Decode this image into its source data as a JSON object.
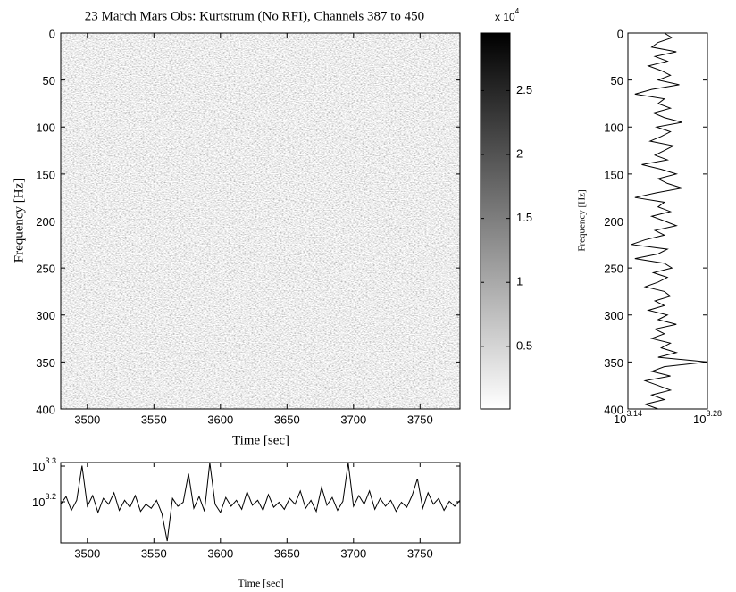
{
  "chart_data": [
    {
      "type": "heatmap",
      "title": "23 March Mars Obs: Kurtstrum (No RFI), Channels 387 to 450",
      "xlabel": "Time [sec]",
      "ylabel": "Frequency [Hz]",
      "xlim": [
        3480,
        3780
      ],
      "xticks": [
        3500,
        3550,
        3600,
        3650,
        3700,
        3750
      ],
      "ylim": [
        0,
        400
      ],
      "y_reversed": true,
      "yticks": [
        0,
        50,
        100,
        150,
        200,
        250,
        300,
        350,
        400
      ],
      "colormap": "gray",
      "colorbar": {
        "clim": [
          0.01,
          2.95
        ],
        "ticks": [
          0.5,
          1,
          1.5,
          2,
          2.5
        ],
        "multiplier": "x 10^4"
      }
    },
    {
      "type": "profile",
      "ylabel": "Frequency [Hz]",
      "xscale": "log",
      "color": "#000000",
      "xlim": [
        1380.38,
        1905.46
      ],
      "xticks": [
        {
          "value": 1380.38,
          "label": "10^3.14"
        },
        {
          "value": 1905.46,
          "label": "10^3.28"
        }
      ],
      "ylim": [
        0,
        400
      ],
      "y_reversed": true,
      "yticks": [
        0,
        50,
        100,
        150,
        200,
        250,
        300,
        350,
        400
      ],
      "y": [
        0,
        5,
        10,
        15,
        20,
        25,
        30,
        35,
        40,
        45,
        50,
        55,
        60,
        65,
        70,
        75,
        80,
        85,
        90,
        95,
        100,
        105,
        110,
        115,
        120,
        125,
        130,
        135,
        140,
        145,
        150,
        155,
        160,
        165,
        170,
        175,
        180,
        185,
        190,
        195,
        200,
        205,
        210,
        215,
        220,
        225,
        230,
        235,
        240,
        245,
        250,
        255,
        260,
        265,
        270,
        275,
        280,
        285,
        290,
        295,
        300,
        305,
        310,
        315,
        320,
        325,
        330,
        335,
        340,
        345,
        350,
        355,
        360,
        365,
        370,
        375,
        380,
        385,
        390,
        395,
        400
      ],
      "values": [
        1600,
        1650,
        1560,
        1520,
        1680,
        1540,
        1620,
        1500,
        1580,
        1640,
        1560,
        1700,
        1520,
        1420,
        1600,
        1560,
        1640,
        1530,
        1600,
        1720,
        1550,
        1640,
        1580,
        1510,
        1660,
        1600,
        1540,
        1620,
        1460,
        1580,
        1680,
        1560,
        1620,
        1720,
        1550,
        1420,
        1600,
        1560,
        1640,
        1520,
        1600,
        1680,
        1540,
        1600,
        1480,
        1400,
        1620,
        1560,
        1420,
        1600,
        1650,
        1530,
        1620,
        1560,
        1480,
        1600,
        1640,
        1540,
        1600,
        1500,
        1620,
        1560,
        1680,
        1540,
        1600,
        1520,
        1640,
        1580,
        1680,
        1560,
        1905,
        1600,
        1520,
        1640,
        1480,
        1560,
        1640,
        1520,
        1600,
        1480,
        1560
      ]
    },
    {
      "type": "line",
      "xlabel": "Time [sec]",
      "yscale": "log",
      "color": "#000000",
      "xlim": [
        3480,
        3780
      ],
      "xticks": [
        3500,
        3550,
        3600,
        3650,
        3700,
        3750
      ],
      "ylim": [
        1216,
        2042
      ],
      "yticks": [
        {
          "value": 1584.89,
          "label": "10^3.2"
        },
        {
          "value": 1995.26,
          "label": "10^3.3"
        }
      ],
      "x": [
        3480,
        3484,
        3488,
        3492,
        3496,
        3500,
        3504,
        3508,
        3512,
        3516,
        3520,
        3524,
        3528,
        3532,
        3536,
        3540,
        3544,
        3548,
        3552,
        3556,
        3560,
        3564,
        3568,
        3572,
        3576,
        3580,
        3584,
        3588,
        3592,
        3596,
        3600,
        3604,
        3608,
        3612,
        3616,
        3620,
        3624,
        3628,
        3632,
        3636,
        3640,
        3644,
        3648,
        3652,
        3656,
        3660,
        3664,
        3668,
        3672,
        3676,
        3680,
        3684,
        3688,
        3692,
        3696,
        3700,
        3704,
        3708,
        3712,
        3716,
        3720,
        3724,
        3728,
        3732,
        3736,
        3740,
        3744,
        3748,
        3752,
        3756,
        3760,
        3764,
        3768,
        3772,
        3776,
        3780
      ],
      "values": [
        1560,
        1640,
        1500,
        1600,
        2000,
        1540,
        1650,
        1480,
        1620,
        1560,
        1680,
        1500,
        1600,
        1530,
        1650,
        1490,
        1560,
        1520,
        1600,
        1470,
        1230,
        1620,
        1540,
        1580,
        1900,
        1520,
        1640,
        1490,
        2040,
        1560,
        1480,
        1630,
        1540,
        1600,
        1510,
        1690,
        1550,
        1600,
        1500,
        1660,
        1530,
        1580,
        1510,
        1620,
        1560,
        1700,
        1520,
        1600,
        1490,
        1740,
        1550,
        1630,
        1500,
        1590,
        2040,
        1540,
        1650,
        1560,
        1700,
        1510,
        1620,
        1540,
        1600,
        1490,
        1580,
        1530,
        1650,
        1840,
        1520,
        1680,
        1560,
        1620,
        1500,
        1590,
        1540,
        1600
      ]
    }
  ]
}
